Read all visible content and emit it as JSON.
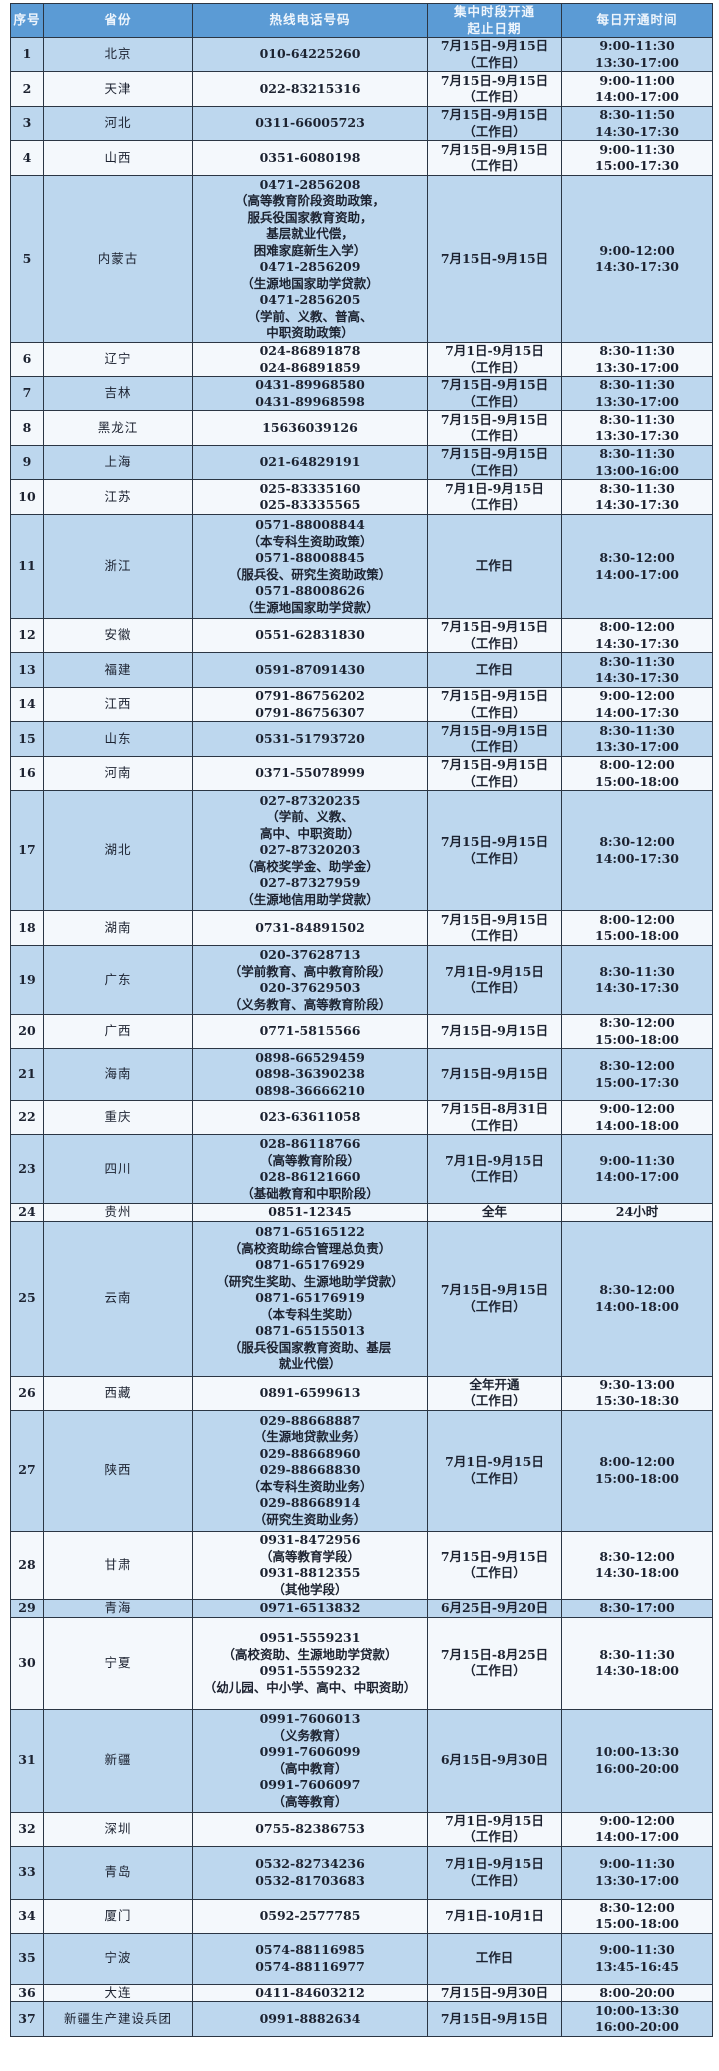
{
  "headers": {
    "no": "序号",
    "province": "省份",
    "phone": "热线电话号码",
    "period": [
      "集中时段开通",
      "起止日期"
    ],
    "hours": "每日开通时间"
  },
  "colors": {
    "header": "#5b9bd5",
    "odd_row": "#bdd7ee",
    "even_row": "#f4f8fc",
    "border": "#2b3644"
  },
  "rows": [
    {
      "no": "1",
      "province": "北京",
      "phones": [
        "010-64225260"
      ],
      "period": [
        "7月15日-9月15日",
        "（工作日）"
      ],
      "hours": [
        "9:00-11:30",
        "13:30-17:00"
      ]
    },
    {
      "no": "2",
      "province": "天津",
      "phones": [
        "022-83215316"
      ],
      "period": [
        "7月15日-9月15日",
        "（工作日）"
      ],
      "hours": [
        "9:00-11:00",
        "14:00-17:00"
      ]
    },
    {
      "no": "3",
      "province": "河北",
      "phones": [
        "0311-66005723"
      ],
      "period": [
        "7月15日-9月15日",
        "（工作日）"
      ],
      "hours": [
        "8:30-11:50",
        "14:30-17:30"
      ]
    },
    {
      "no": "4",
      "province": "山西",
      "phones": [
        "0351-6080198"
      ],
      "period": [
        "7月15日-9月15日",
        "（工作日）"
      ],
      "hours": [
        "9:00-11:30",
        "15:00-17:30"
      ]
    },
    {
      "no": "5",
      "province": "内蒙古",
      "phones": [
        "0471-2856208",
        "（高等教育阶段资助政策，",
        "服兵役国家教育资助，",
        "基层就业代偿，",
        "困难家庭新生入学）",
        "0471-2856209",
        "（生源地国家助学贷款）",
        "0471-2856205",
        "（学前、义教、普高、",
        "中职资助政策）"
      ],
      "period": [
        "7月15日-9月15日"
      ],
      "hours": [
        "9:00-12:00",
        "14:30-17:30"
      ]
    },
    {
      "no": "6",
      "province": "辽宁",
      "phones": [
        "024-86891878",
        "024-86891859"
      ],
      "period": [
        "7月1日-9月15日",
        "（工作日）"
      ],
      "hours": [
        "8:30-11:30",
        "13:30-17:00"
      ]
    },
    {
      "no": "7",
      "province": "吉林",
      "phones": [
        "0431-89968580",
        "0431-89968598"
      ],
      "period": [
        "7月15日-9月15日",
        "（工作日）"
      ],
      "hours": [
        "8:30-11:30",
        "13:30-17:00"
      ]
    },
    {
      "no": "8",
      "province": "黑龙江",
      "phones": [
        "15636039126"
      ],
      "period": [
        "7月15日-9月15日",
        "（工作日）"
      ],
      "hours": [
        "8:30-11:30",
        "13:30-17:30"
      ]
    },
    {
      "no": "9",
      "province": "上海",
      "phones": [
        "021-64829191"
      ],
      "period": [
        "7月15日-9月15日",
        "（工作日）"
      ],
      "hours": [
        "8:30-11:30",
        "13:00-16:00"
      ]
    },
    {
      "no": "10",
      "province": "江苏",
      "phones": [
        "025-83335160",
        "025-83335565"
      ],
      "period": [
        "7月1日-9月15日",
        "（工作日）"
      ],
      "hours": [
        "8:30-11:30",
        "14:30-17:30"
      ]
    },
    {
      "no": "11",
      "province": "浙江",
      "phones": [
        "0571-88008844",
        "（本专科生资助政策）",
        "0571-88008845",
        "（服兵役、研究生资助政策）",
        "0571-88008626",
        "（生源地国家助学贷款）"
      ],
      "period": [
        "工作日"
      ],
      "hours": [
        "8:30-12:00",
        "14:00-17:00"
      ]
    },
    {
      "no": "12",
      "province": "安徽",
      "phones": [
        "0551-62831830"
      ],
      "period": [
        "7月15日-9月15日",
        "（工作日）"
      ],
      "hours": [
        "8:00-12:00",
        "14:30-17:30"
      ]
    },
    {
      "no": "13",
      "province": "福建",
      "phones": [
        "0591-87091430"
      ],
      "period": [
        "工作日"
      ],
      "hours": [
        "8:30-11:30",
        "14:30-17:30"
      ]
    },
    {
      "no": "14",
      "province": "江西",
      "phones": [
        "0791-86756202",
        "0791-86756307"
      ],
      "period": [
        "7月15日-9月15日",
        "（工作日）"
      ],
      "hours": [
        "9:00-12:00",
        "14:00-17:30"
      ]
    },
    {
      "no": "15",
      "province": "山东",
      "phones": [
        "0531-51793720"
      ],
      "period": [
        "7月15日-9月15日",
        "（工作日）"
      ],
      "hours": [
        "8:30-11:30",
        "13:30-17:00"
      ]
    },
    {
      "no": "16",
      "province": "河南",
      "phones": [
        "0371-55078999"
      ],
      "period": [
        "7月15日-9月15日",
        "（工作日）"
      ],
      "hours": [
        "8:00-12:00",
        "15:00-18:00"
      ]
    },
    {
      "no": "17",
      "province": "湖北",
      "phones": [
        "027-87320235",
        "（学前、义教、",
        "高中、中职资助）",
        "027-87320203",
        "（高校奖学金、助学金）",
        "027-87327959",
        "（生源地信用助学贷款）"
      ],
      "period": [
        "7月15日-9月15日",
        "（工作日）"
      ],
      "hours": [
        "8:30-12:00",
        "14:00-17:30"
      ]
    },
    {
      "no": "18",
      "province": "湖南",
      "phones": [
        "0731-84891502"
      ],
      "period": [
        "7月15日-9月15日",
        "（工作日）"
      ],
      "hours": [
        "8:00-12:00",
        "15:00-18:00"
      ]
    },
    {
      "no": "19",
      "province": "广东",
      "phones": [
        "020-37628713",
        "（学前教育、高中教育阶段）",
        "020-37629503",
        "（义务教育、高等教育阶段）"
      ],
      "period": [
        "7月1日-9月15日",
        "（工作日）"
      ],
      "hours": [
        "8:30-11:30",
        "14:30-17:30"
      ]
    },
    {
      "no": "20",
      "province": "广西",
      "phones": [
        "0771-5815566"
      ],
      "period": [
        "7月15日-9月15日"
      ],
      "hours": [
        "8:30-12:00",
        "15:00-18:00"
      ]
    },
    {
      "no": "21",
      "province": "海南",
      "phones": [
        "0898-66529459",
        "0898-36390238",
        "0898-36666210"
      ],
      "period": [
        "7月15日-9月15日"
      ],
      "hours": [
        "8:30-12:00",
        "15:00-17:30"
      ]
    },
    {
      "no": "22",
      "province": "重庆",
      "phones": [
        "023-63611058"
      ],
      "period": [
        "7月15日-8月31日",
        "（工作日）"
      ],
      "hours": [
        "9:00-12:00",
        "14:00-18:00"
      ]
    },
    {
      "no": "23",
      "province": "四川",
      "phones": [
        "028-86118766",
        "（高等教育阶段）",
        "028-86121660",
        "（基础教育和中职阶段）"
      ],
      "period": [
        "7月1日-9月15日",
        "（工作日）"
      ],
      "hours": [
        "9:00-11:30",
        "14:00-17:00"
      ]
    },
    {
      "no": "24",
      "province": "贵州",
      "phones": [
        "0851-12345"
      ],
      "period": [
        "全年"
      ],
      "hours": [
        "24小时"
      ]
    },
    {
      "no": "25",
      "province": "云南",
      "phones": [
        "0871-65165122",
        "（高校资助综合管理总负责）",
        "0871-65176929",
        "（研究生奖助、生源地助学贷款）",
        "0871-65176919",
        "（本专科生奖助）",
        "0871-65155013",
        "（服兵役国家教育资助、基层",
        "就业代偿）"
      ],
      "period": [
        "7月15日-9月15日",
        "（工作日）"
      ],
      "hours": [
        "8:30-12:00",
        "14:00-18:00"
      ]
    },
    {
      "no": "26",
      "province": "西藏",
      "phones": [
        "0891-6599613"
      ],
      "period": [
        "全年开通",
        "（工作日）"
      ],
      "hours": [
        "9:30-13:00",
        "15:30-18:30"
      ]
    },
    {
      "no": "27",
      "province": "陕西",
      "phones": [
        "029-88668887",
        "（生源地贷款业务）",
        "029-88668960",
        "029-88668830",
        "（本专科生资助业务）",
        "029-88668914",
        "（研究生资助业务）"
      ],
      "period": [
        "7月1日-9月15日",
        "（工作日）"
      ],
      "hours": [
        "8:00-12:00",
        "15:00-18:00"
      ]
    },
    {
      "no": "28",
      "province": "甘肃",
      "phones": [
        "0931-8472956",
        "（高等教育学段）",
        "0931-8812355",
        "（其他学段）"
      ],
      "period": [
        "7月15日-9月15日",
        "（工作日）"
      ],
      "hours": [
        "8:30-12:00",
        "14:30-18:00"
      ]
    },
    {
      "no": "29",
      "province": "青海",
      "phones": [
        "0971-6513832"
      ],
      "period": [
        "6月25日-9月20日"
      ],
      "hours": [
        "8:30-17:00"
      ]
    },
    {
      "no": "30",
      "province": "宁夏",
      "phones": [
        "0951-5559231",
        "（高校资助、生源地助学贷款）",
        "0951-5559232",
        "（幼儿园、中小学、高中、中职资助）"
      ],
      "period": [
        "7月15日-8月25日",
        "（工作日）"
      ],
      "hours": [
        "8:30-11:30",
        "14:30-18:00"
      ]
    },
    {
      "no": "31",
      "province": "新疆",
      "phones": [
        "0991-7606013",
        "（义务教育）",
        "0991-7606099",
        "（高中教育）",
        "0991-7606097",
        "（高等教育）"
      ],
      "period": [
        "6月15日-9月30日"
      ],
      "hours": [
        "10:00-13:30",
        "16:00-20:00"
      ]
    },
    {
      "no": "32",
      "province": "深圳",
      "phones": [
        "0755-82386753"
      ],
      "period": [
        "7月1日-9月15日",
        "（工作日）"
      ],
      "hours": [
        "9:00-12:00",
        "14:00-17:00"
      ]
    },
    {
      "no": "33",
      "province": "青岛",
      "phones": [
        "0532-82734236",
        "0532-81703683"
      ],
      "period": [
        "7月1日-9月15日",
        "（工作日）"
      ],
      "hours": [
        "9:00-11:30",
        "13:30-17:00"
      ]
    },
    {
      "no": "34",
      "province": "厦门",
      "phones": [
        "0592-2577785"
      ],
      "period": [
        "7月1日-10月1日"
      ],
      "hours": [
        "8:30-12:00",
        "15:00-18:00"
      ]
    },
    {
      "no": "35",
      "province": "宁波",
      "phones": [
        "0574-88116985",
        "0574-88116977"
      ],
      "period": [
        "工作日"
      ],
      "hours": [
        "9:00-11:30",
        "13:45-16:45"
      ]
    },
    {
      "no": "36",
      "province": "大连",
      "phones": [
        "0411-84603212"
      ],
      "period": [
        "7月15日-9月30日"
      ],
      "hours": [
        "8:00-20:00"
      ]
    },
    {
      "no": "37",
      "province": "新疆生产建设兵团",
      "phones": [
        "0991-8882634"
      ],
      "period": [
        "7月15日-9月15日"
      ],
      "hours": [
        "10:00-13:30",
        "16:00-20:00"
      ]
    }
  ]
}
